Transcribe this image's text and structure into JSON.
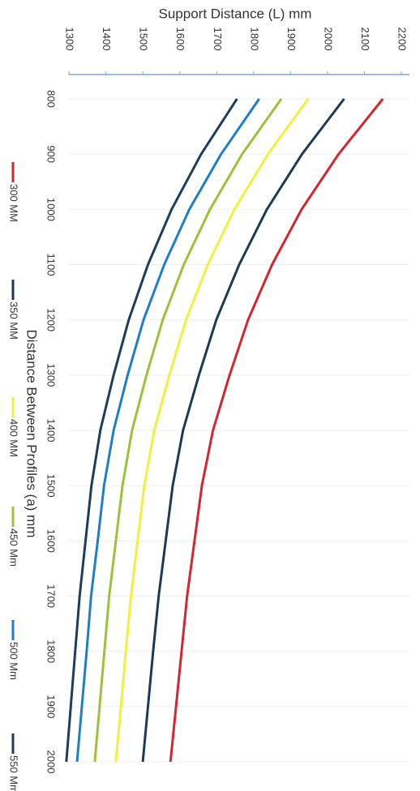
{
  "chart_data": {
    "type": "line",
    "y_label": "Support Distance (L) mm",
    "x_label": "Distance Between Profiles (a) mm",
    "x": [
      800,
      900,
      1000,
      1100,
      1200,
      1300,
      1400,
      1500,
      1600,
      1700,
      1800,
      1900,
      2000
    ],
    "xlim": [
      800,
      2000
    ],
    "xticks": [
      800,
      900,
      1000,
      1100,
      1200,
      1300,
      1400,
      1500,
      1600,
      1700,
      1800,
      1900,
      2000
    ],
    "ylim": [
      1300,
      2200
    ],
    "yticks": [
      1300,
      1400,
      1500,
      1600,
      1700,
      1800,
      1900,
      2000,
      2100,
      2200
    ],
    "series": [
      {
        "name": "300 MM",
        "color": "#d22630",
        "values": [
          2150,
          2030,
          1930,
          1850,
          1785,
          1735,
          1690,
          1660,
          1640,
          1620,
          1605,
          1590,
          1575
        ]
      },
      {
        "name": "350 MM",
        "color": "#1b3a5a",
        "values": [
          2045,
          1931,
          1836,
          1761,
          1699,
          1652,
          1609,
          1581,
          1562,
          1543,
          1528,
          1514,
          1500
        ]
      },
      {
        "name": "400 MM",
        "color": "#f2f03c",
        "values": [
          1948,
          1839,
          1748,
          1676,
          1617,
          1572,
          1531,
          1504,
          1486,
          1468,
          1454,
          1441,
          1427
        ]
      },
      {
        "name": "450 Mm",
        "color": "#9cc23a",
        "values": [
          1875,
          1769,
          1682,
          1611,
          1554,
          1510,
          1471,
          1445,
          1427,
          1409,
          1396,
          1383,
          1370
        ]
      },
      {
        "name": "500 Mm",
        "color": "#1f7fc6",
        "values": [
          1815,
          1712,
          1626,
          1558,
          1502,
          1459,
          1421,
          1395,
          1378,
          1360,
          1348,
          1335,
          1322
        ]
      },
      {
        "name": "550 Mm",
        "color": "#1c3d5e",
        "values": [
          1755,
          1658,
          1578,
          1514,
          1462,
          1421,
          1385,
          1361,
          1345,
          1329,
          1317,
          1305,
          1293
        ]
      }
    ]
  }
}
